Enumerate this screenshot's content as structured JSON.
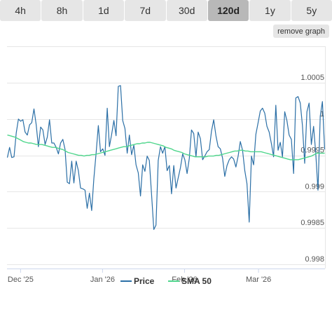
{
  "tabs": [
    {
      "label": "4h",
      "active": false
    },
    {
      "label": "8h",
      "active": false
    },
    {
      "label": "1d",
      "active": false
    },
    {
      "label": "7d",
      "active": false
    },
    {
      "label": "30d",
      "active": false
    },
    {
      "label": "120d",
      "active": true
    },
    {
      "label": "1y",
      "active": false
    },
    {
      "label": "5y",
      "active": false
    }
  ],
  "remove_graph_label": "remove graph",
  "chart_data": {
    "type": "line",
    "ylim": [
      0.998,
      1.0005
    ],
    "y_ticks": [
      {
        "value": 1.0005,
        "label": "1.0005"
      },
      {
        "value": 1.0,
        "label": "1"
      },
      {
        "value": 0.9995,
        "label": "0.9995"
      },
      {
        "value": 0.999,
        "label": "0.999"
      },
      {
        "value": 0.9985,
        "label": "0.9985"
      },
      {
        "value": 0.998,
        "label": "0.998"
      }
    ],
    "x_ticks": [
      "Dec '25",
      "Jan '26",
      "Feb '26",
      "Mar '26"
    ],
    "x_tick_positions": [
      5,
      36,
      67,
      95
    ],
    "x_range": [
      0,
      120
    ],
    "grid": true,
    "legend": "bottom",
    "colors": {
      "price": "#2b6fa6",
      "sma": "#4fd68c"
    },
    "series": [
      {
        "name": "Price",
        "values": [
          0.99947,
          0.99961,
          0.99947,
          0.99948,
          0.99981,
          1.0,
          0.99997,
          0.99999,
          0.99982,
          0.99978,
          0.99992,
          0.99995,
          1.00014,
          0.99992,
          0.99962,
          0.99989,
          0.99985,
          0.99965,
          0.99975,
          0.99999,
          0.99967,
          0.99967,
          0.99961,
          0.99952,
          0.99967,
          0.99972,
          0.99958,
          0.99913,
          0.99911,
          0.99942,
          0.99912,
          0.99942,
          0.99929,
          0.99905,
          0.99904,
          0.99902,
          0.99877,
          0.99898,
          0.99874,
          0.99918,
          0.99953,
          0.99991,
          0.99955,
          0.99959,
          0.9995,
          1.00015,
          0.99962,
          0.99979,
          0.99998,
          0.99977,
          1.00045,
          1.00046,
          0.99998,
          0.99987,
          0.99953,
          0.99978,
          0.99951,
          0.99964,
          0.99937,
          0.99926,
          0.99894,
          0.99937,
          0.99928,
          0.99949,
          0.99943,
          0.99896,
          0.99848,
          0.99854,
          0.99943,
          0.99962,
          0.99953,
          0.99962,
          0.99929,
          0.99936,
          0.99897,
          0.99936,
          0.99905,
          0.99919,
          0.99933,
          0.99952,
          0.99944,
          0.99925,
          0.99946,
          0.99985,
          0.9998,
          0.99948,
          0.99982,
          0.99973,
          0.99944,
          0.99949,
          0.99955,
          0.99958,
          0.99983,
          0.99999,
          0.99977,
          0.99962,
          0.99959,
          0.99946,
          0.99921,
          0.99936,
          0.99944,
          0.99948,
          0.99945,
          0.99934,
          0.99949,
          0.99969,
          0.99957,
          0.99929,
          0.99911,
          0.99858,
          0.99949,
          0.99937,
          0.99979,
          0.99995,
          1.00011,
          1.00015,
          1.00008,
          0.9999,
          0.99982,
          0.99966,
          0.99948,
          1.00019,
          0.99957,
          0.99968,
          0.99948,
          1.0001,
          0.99998,
          0.99978,
          0.99972,
          0.99925,
          1.00029,
          1.00031,
          1.00022,
          0.99991,
          0.99939,
          1.0001,
          1.00022,
          0.99965,
          0.9999,
          0.99953,
          0.99902,
          1.00004,
          1.00024,
          0.99958
        ]
      },
      {
        "name": "SMA 50",
        "values": [
          0.99978,
          0.99977,
          0.99976,
          0.99975,
          0.99973,
          0.99971,
          0.99969,
          0.99968,
          0.99967,
          0.99967,
          0.99966,
          0.99965,
          0.99965,
          0.99965,
          0.99964,
          0.99963,
          0.99962,
          0.99961,
          0.99961,
          0.9996,
          0.99959,
          0.99958,
          0.99956,
          0.99954,
          0.99953,
          0.99952,
          0.99951,
          0.9995,
          0.9995,
          0.99949,
          0.9995,
          0.9995,
          0.99951,
          0.99951,
          0.99952,
          0.99953,
          0.99954,
          0.99955,
          0.99956,
          0.99957,
          0.99958,
          0.99959,
          0.9996,
          0.99961,
          0.99962,
          0.99962,
          0.99963,
          0.99964,
          0.99965,
          0.99966,
          0.99966,
          0.99967,
          0.99967,
          0.99968,
          0.99968,
          0.99967,
          0.99966,
          0.99965,
          0.99964,
          0.99963,
          0.99961,
          0.9996,
          0.99959,
          0.99957,
          0.99956,
          0.99955,
          0.99954,
          0.99952,
          0.99951,
          0.9995,
          0.99949,
          0.99948,
          0.99948,
          0.99948,
          0.99948,
          0.99948,
          0.99949,
          0.99949,
          0.99949,
          0.9995,
          0.9995,
          0.99951,
          0.99952,
          0.99953,
          0.99954,
          0.99955,
          0.99956,
          0.99956,
          0.99957,
          0.99957,
          0.99956,
          0.99956,
          0.99955,
          0.99955,
          0.99955,
          0.99955,
          0.99955,
          0.99954,
          0.99953,
          0.99952,
          0.99951,
          0.9995,
          0.99949,
          0.99948,
          0.99947,
          0.99946,
          0.99945,
          0.99944,
          0.99944,
          0.99944,
          0.99944,
          0.99945,
          0.99946,
          0.99947,
          0.99948,
          0.99949,
          0.99951,
          0.99953,
          0.99953,
          0.99953,
          0.99953
        ]
      }
    ]
  }
}
